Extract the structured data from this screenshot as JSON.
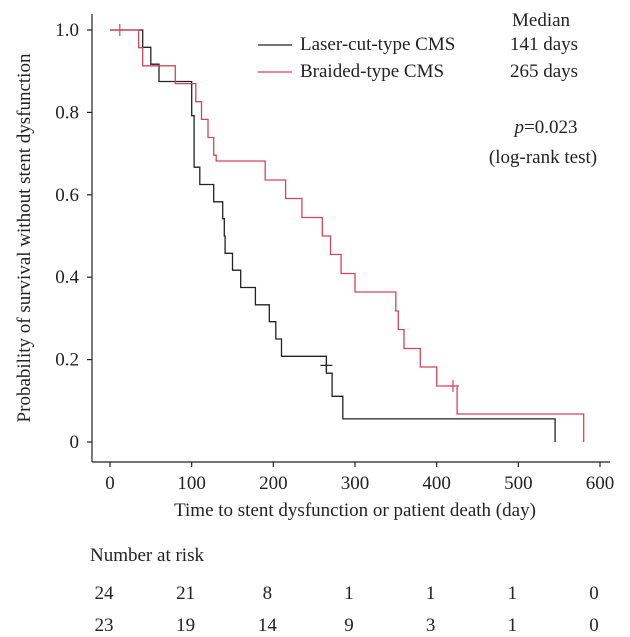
{
  "chart_data": {
    "type": "line",
    "xlabel": "Time to stent dysfunction or patient death (day)",
    "ylabel": "Probability of survival without stent dysfunction",
    "xlim": [
      0,
      600
    ],
    "ylim": [
      0,
      1.0
    ],
    "xticks": [
      "0",
      "100",
      "200",
      "300",
      "400",
      "500",
      "600"
    ],
    "yticks": [
      "0",
      "0.2",
      "0.4",
      "0.6",
      "0.8",
      "1.0"
    ],
    "xtick_values": [
      0,
      100,
      200,
      300,
      400,
      500,
      600
    ],
    "ytick_values": [
      0,
      0.2,
      0.4,
      0.6,
      0.8,
      1.0
    ],
    "grid": false,
    "legend_position": "top-right",
    "median_header": "Median",
    "p_value_symbol": "p",
    "p_value_rest": "=0.023",
    "test_label": "(log-rank test)",
    "series": [
      {
        "name": "Laser-cut-type CMS",
        "median": "141 days",
        "color": "#222222",
        "points": [
          [
            0,
            1.0
          ],
          [
            40,
            1.0
          ],
          [
            40,
            0.958
          ],
          [
            50,
            0.958
          ],
          [
            50,
            0.917
          ],
          [
            60,
            0.917
          ],
          [
            60,
            0.875
          ],
          [
            100,
            0.875
          ],
          [
            100,
            0.792
          ],
          [
            103,
            0.792
          ],
          [
            103,
            0.667
          ],
          [
            110,
            0.667
          ],
          [
            110,
            0.625
          ],
          [
            127,
            0.625
          ],
          [
            127,
            0.583
          ],
          [
            138,
            0.583
          ],
          [
            138,
            0.542
          ],
          [
            140,
            0.542
          ],
          [
            140,
            0.5
          ],
          [
            141,
            0.5
          ],
          [
            141,
            0.458
          ],
          [
            150,
            0.458
          ],
          [
            150,
            0.417
          ],
          [
            160,
            0.417
          ],
          [
            160,
            0.375
          ],
          [
            178,
            0.375
          ],
          [
            178,
            0.333
          ],
          [
            195,
            0.333
          ],
          [
            195,
            0.292
          ],
          [
            203,
            0.292
          ],
          [
            203,
            0.25
          ],
          [
            210,
            0.25
          ],
          [
            210,
            0.208
          ],
          [
            265,
            0.208
          ],
          [
            265,
            0.167
          ],
          [
            272,
            0.167
          ],
          [
            272,
            0.111
          ],
          [
            285,
            0.111
          ],
          [
            285,
            0.056
          ],
          [
            545,
            0.056
          ],
          [
            545,
            0.0
          ]
        ],
        "censored": [
          [
            265,
            0.186
          ]
        ]
      },
      {
        "name": "Braided-type CMS",
        "median": "265 days",
        "color": "#d4455a",
        "points": [
          [
            0,
            1.0
          ],
          [
            35,
            1.0
          ],
          [
            35,
            0.957
          ],
          [
            40,
            0.957
          ],
          [
            40,
            0.913
          ],
          [
            80,
            0.913
          ],
          [
            80,
            0.87
          ],
          [
            105,
            0.87
          ],
          [
            105,
            0.826
          ],
          [
            112,
            0.826
          ],
          [
            112,
            0.783
          ],
          [
            120,
            0.783
          ],
          [
            120,
            0.739
          ],
          [
            127,
            0.739
          ],
          [
            127,
            0.696
          ],
          [
            130,
            0.696
          ],
          [
            130,
            0.682
          ],
          [
            190,
            0.682
          ],
          [
            190,
            0.636
          ],
          [
            215,
            0.636
          ],
          [
            215,
            0.591
          ],
          [
            235,
            0.591
          ],
          [
            235,
            0.545
          ],
          [
            260,
            0.545
          ],
          [
            260,
            0.5
          ],
          [
            270,
            0.5
          ],
          [
            270,
            0.455
          ],
          [
            283,
            0.455
          ],
          [
            283,
            0.409
          ],
          [
            300,
            0.409
          ],
          [
            300,
            0.364
          ],
          [
            350,
            0.364
          ],
          [
            350,
            0.318
          ],
          [
            353,
            0.318
          ],
          [
            353,
            0.273
          ],
          [
            360,
            0.273
          ],
          [
            360,
            0.227
          ],
          [
            380,
            0.227
          ],
          [
            380,
            0.182
          ],
          [
            400,
            0.182
          ],
          [
            400,
            0.136
          ],
          [
            425,
            0.136
          ],
          [
            425,
            0.068
          ],
          [
            580,
            0.068
          ],
          [
            580,
            0.0
          ]
        ],
        "censored": [
          [
            12,
            1.0
          ],
          [
            420,
            0.136
          ]
        ]
      }
    ]
  },
  "risk_table": {
    "title": "Number at risk",
    "rows": [
      [
        "24",
        "21",
        "8",
        "1",
        "1",
        "1",
        "0"
      ],
      [
        "23",
        "19",
        "14",
        "9",
        "3",
        "1",
        "0"
      ]
    ]
  }
}
